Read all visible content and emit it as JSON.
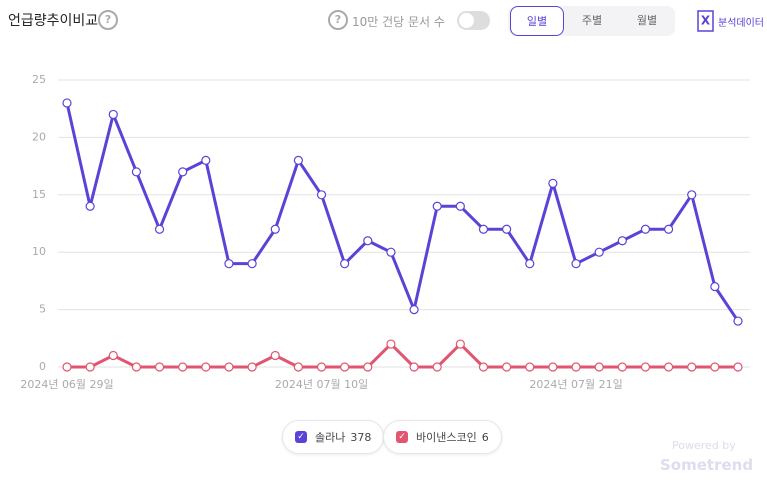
{
  "header": {
    "title": "언급량추이비교",
    "toggle_label": "10만 건당 문서 수",
    "tabs": [
      "일별",
      "주별",
      "월별"
    ],
    "active_tab": 0,
    "export_label": "분석데이터"
  },
  "chart_data": {
    "type": "line",
    "categories": [
      "2024년 06월 29일",
      null,
      null,
      null,
      null,
      null,
      null,
      null,
      null,
      null,
      null,
      "2024년 07월 10일",
      null,
      null,
      null,
      null,
      null,
      null,
      null,
      null,
      null,
      null,
      "2024년 07월 21일",
      null,
      null,
      null,
      null,
      null,
      null,
      null
    ],
    "series": [
      {
        "name": "솔라나",
        "color": "#5a43d6",
        "total": 378,
        "values": [
          23,
          14,
          22,
          17,
          12,
          17,
          18,
          9,
          9,
          12,
          18,
          15,
          9,
          11,
          10,
          5,
          14,
          14,
          12,
          12,
          9,
          16,
          9,
          10,
          11,
          12,
          12,
          15,
          7,
          4
        ]
      },
      {
        "name": "바이낸스코인",
        "color": "#e0566f",
        "total": 6,
        "values": [
          0,
          0,
          1,
          0,
          0,
          0,
          0,
          0,
          0,
          1,
          0,
          0,
          0,
          0,
          2,
          0,
          0,
          2,
          0,
          0,
          0,
          0,
          0,
          0,
          0,
          0,
          0,
          0,
          0,
          0
        ]
      }
    ],
    "ylim": [
      0,
      25
    ],
    "yticks": [
      0,
      5,
      10,
      15,
      20,
      25
    ],
    "grid": true
  },
  "footer": {
    "powered_by": "Powered by",
    "brand": "Sometrend"
  }
}
